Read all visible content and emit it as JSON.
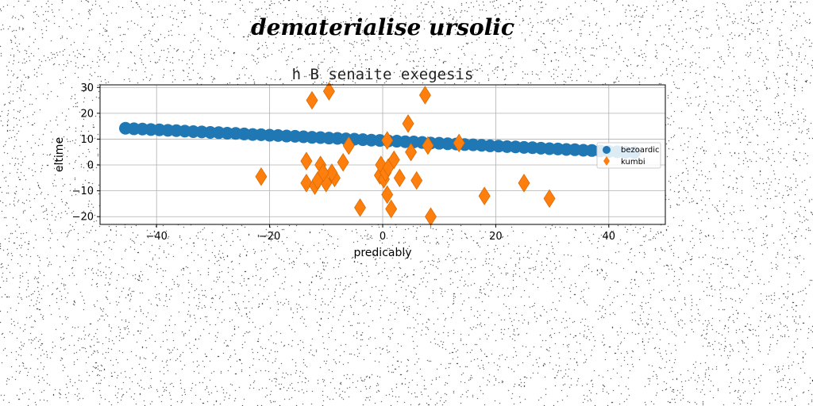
{
  "figure": {
    "suptitle": "dematerialise ursolic"
  },
  "chart_data": {
    "type": "scatter",
    "title": "h B senaite exegesis",
    "xlabel": "predicably",
    "ylabel": "eltime",
    "xlim": [
      -50,
      50
    ],
    "ylim": [
      -23,
      31
    ],
    "xticks": [
      -40,
      -20,
      0,
      20,
      40
    ],
    "yticks": [
      -20,
      -10,
      0,
      10,
      20,
      30
    ],
    "grid": true,
    "legend_position": "center-right",
    "series": [
      {
        "name": "bezoardic",
        "marker": "circle",
        "color": "#1f77b4",
        "x": [
          -45.5,
          -44.0,
          -42.5,
          -41.0,
          -39.5,
          -38.0,
          -36.5,
          -35.0,
          -33.5,
          -32.0,
          -30.5,
          -29.0,
          -27.5,
          -26.0,
          -24.5,
          -23.0,
          -21.5,
          -20.0,
          -18.5,
          -17.0,
          -15.5,
          -14.0,
          -12.5,
          -11.0,
          -9.5,
          -8.0,
          -6.5,
          -5.0,
          -3.5,
          -2.0,
          -0.5,
          1.0,
          2.5,
          4.0,
          5.5,
          7.0,
          8.5,
          10.0,
          11.5,
          13.0,
          14.5,
          16.0,
          17.5,
          19.0,
          20.5,
          22.0,
          23.5,
          25.0,
          26.5,
          28.0,
          29.5,
          31.0,
          32.5,
          34.0,
          35.5,
          37.0,
          38.5,
          40.0,
          41.5,
          43.0,
          44.5
        ],
        "y": [
          14.2,
          14.0,
          13.9,
          13.7,
          13.6,
          13.4,
          13.3,
          13.1,
          12.9,
          12.8,
          12.6,
          12.5,
          12.3,
          12.2,
          12.0,
          11.8,
          11.7,
          11.5,
          11.4,
          11.2,
          11.1,
          10.9,
          10.7,
          10.6,
          10.4,
          10.3,
          10.1,
          10.0,
          9.8,
          9.6,
          9.5,
          9.3,
          9.2,
          9.0,
          8.9,
          8.7,
          8.5,
          8.4,
          8.2,
          8.1,
          7.9,
          7.8,
          7.6,
          7.4,
          7.3,
          7.1,
          7.0,
          6.8,
          6.7,
          6.5,
          6.3,
          6.2,
          6.0,
          5.9,
          5.7,
          5.6,
          5.4,
          5.2,
          5.1,
          4.9,
          4.8
        ]
      },
      {
        "name": "kumbi",
        "marker": "diamond",
        "color": "#ff7f0e",
        "x": [
          -12.5,
          -9.5,
          7.5,
          -13.5,
          -12.0,
          -11.0,
          -10.0,
          -8.5,
          -9.0,
          -7.0,
          -6.0,
          -4.0,
          -21.5,
          -13.5,
          -11.5,
          -10.5,
          -0.5,
          -0.3,
          0.2,
          0.5,
          0.8,
          1.0,
          1.5,
          2.0,
          3.0,
          4.5,
          5.0,
          6.0,
          8.0,
          8.5,
          13.5,
          18.0,
          25.0,
          29.5,
          0.8
        ],
        "y": [
          25.0,
          28.5,
          27.0,
          -7.0,
          -8.0,
          0.0,
          -7.0,
          -5.0,
          -3.0,
          1.0,
          7.5,
          -16.5,
          -4.5,
          1.5,
          -6.0,
          -3.0,
          -4.0,
          0.0,
          -5.5,
          -3.0,
          -11.5,
          -1.0,
          -17.0,
          2.0,
          -5.0,
          16.0,
          5.0,
          -6.0,
          7.5,
          -20.0,
          8.5,
          -12.0,
          -7.0,
          -13.0,
          9.5
        ]
      }
    ]
  }
}
